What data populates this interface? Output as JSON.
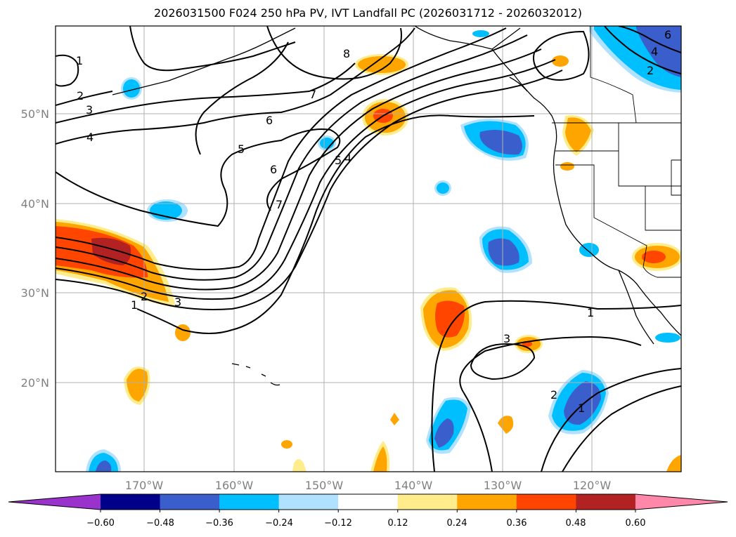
{
  "title": "2026031500 F024 250 hPa PV, IVT Landfall PC (2026031712 - 2026032012)",
  "map": {
    "lon_labels": [
      "170°W",
      "160°W",
      "150°W",
      "140°W",
      "130°W",
      "120°W"
    ],
    "lat_labels": [
      "50°N",
      "40°N",
      "30°N",
      "20°N"
    ],
    "pv_contour_labels": [
      "1",
      "2",
      "3",
      "4",
      "5",
      "6",
      "7",
      "8",
      "5",
      "4",
      "6",
      "7",
      "1",
      "2",
      "3",
      "3",
      "1",
      "2",
      "1",
      "4",
      "2",
      "6"
    ]
  },
  "colorbar": {
    "tick_labels": [
      "−0.60",
      "−0.48",
      "−0.36",
      "−0.24",
      "−0.12",
      "0.12",
      "0.24",
      "0.36",
      "0.48",
      "0.60"
    ],
    "colors": [
      "#9933cc",
      "#00008b",
      "#3a5fcd",
      "#00bfff",
      "#b0e2ff",
      "#ffffff",
      "#ffec8b",
      "#ffa500",
      "#ff4500",
      "#b22222",
      "#ff88aa"
    ]
  }
}
